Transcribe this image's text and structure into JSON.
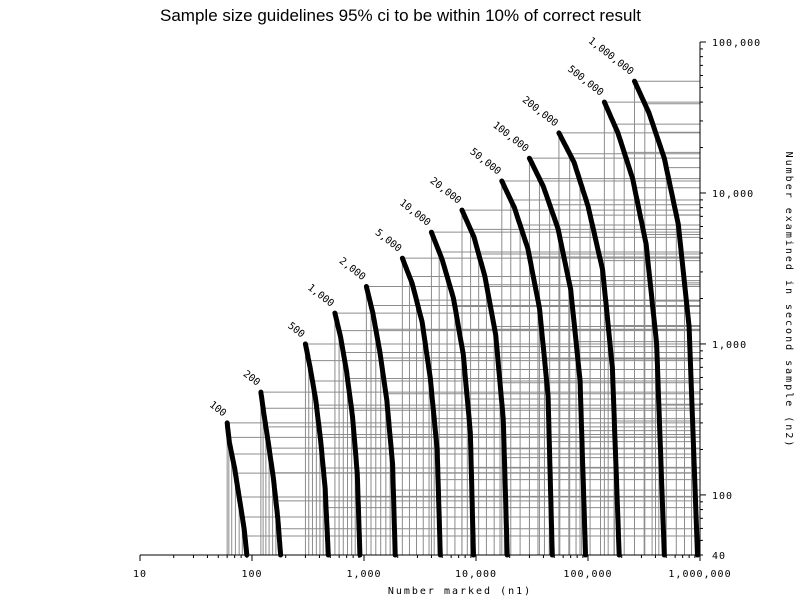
{
  "title": "Sample size guidelines 95% ci to be within 10% of correct result",
  "chart_data": {
    "type": "line",
    "title": "Sample size guidelines 95% ci to be within 10% of correct result",
    "xlabel": "Number marked (n1)",
    "ylabel": "Number examined in second sample (n2)",
    "x_scale": "log",
    "y_scale": "log",
    "xlim": [
      10,
      1000000
    ],
    "ylim": [
      40,
      100000
    ],
    "x_ticks": [
      {
        "value": 10,
        "label": "10"
      },
      {
        "value": 100,
        "label": "100"
      },
      {
        "value": 1000,
        "label": "1,000"
      },
      {
        "value": 10000,
        "label": "10,000"
      },
      {
        "value": 100000,
        "label": "100,000"
      },
      {
        "value": 1000000,
        "label": "1,000,000"
      }
    ],
    "y_ticks": [
      {
        "value": 40,
        "label": "40"
      },
      {
        "value": 100,
        "label": "100"
      },
      {
        "value": 1000,
        "label": "1,000"
      },
      {
        "value": 10000,
        "label": "10,000"
      },
      {
        "value": 100000,
        "label": "100,000"
      }
    ],
    "grid": true,
    "series": [
      {
        "name": "100",
        "points": [
          [
            60,
            300
          ],
          [
            63,
            220
          ],
          [
            70,
            150
          ],
          [
            78,
            90
          ],
          [
            85,
            60
          ],
          [
            90,
            40
          ]
        ]
      },
      {
        "name": "200",
        "points": [
          [
            120,
            480
          ],
          [
            128,
            340
          ],
          [
            140,
            220
          ],
          [
            155,
            130
          ],
          [
            170,
            70
          ],
          [
            180,
            40
          ]
        ]
      },
      {
        "name": "500",
        "points": [
          [
            300,
            1000
          ],
          [
            330,
            700
          ],
          [
            370,
            430
          ],
          [
            410,
            230
          ],
          [
            450,
            110
          ],
          [
            480,
            40
          ]
        ]
      },
      {
        "name": "1,000",
        "points": [
          [
            550,
            1600
          ],
          [
            620,
            1100
          ],
          [
            700,
            650
          ],
          [
            790,
            330
          ],
          [
            870,
            140
          ],
          [
            920,
            40
          ]
        ]
      },
      {
        "name": "2,000",
        "points": [
          [
            1050,
            2400
          ],
          [
            1200,
            1600
          ],
          [
            1380,
            900
          ],
          [
            1600,
            420
          ],
          [
            1800,
            160
          ],
          [
            1900,
            40
          ]
        ]
      },
      {
        "name": "5,000",
        "points": [
          [
            2200,
            3700
          ],
          [
            2700,
            2500
          ],
          [
            3300,
            1400
          ],
          [
            3900,
            600
          ],
          [
            4500,
            200
          ],
          [
            4800,
            40
          ]
        ]
      },
      {
        "name": "10,000",
        "points": [
          [
            4000,
            5500
          ],
          [
            5000,
            3600
          ],
          [
            6300,
            2000
          ],
          [
            7700,
            850
          ],
          [
            8900,
            260
          ],
          [
            9500,
            40
          ]
        ]
      },
      {
        "name": "20,000",
        "points": [
          [
            7500,
            7700
          ],
          [
            9600,
            5100
          ],
          [
            12000,
            2800
          ],
          [
            15000,
            1150
          ],
          [
            17500,
            320
          ],
          [
            19000,
            40
          ]
        ]
      },
      {
        "name": "50,000",
        "points": [
          [
            17000,
            12000
          ],
          [
            22000,
            8000
          ],
          [
            29000,
            4300
          ],
          [
            37000,
            1700
          ],
          [
            44000,
            450
          ],
          [
            48000,
            40
          ]
        ]
      },
      {
        "name": "100,000",
        "points": [
          [
            30000,
            17000
          ],
          [
            40000,
            11000
          ],
          [
            54000,
            5800
          ],
          [
            70000,
            2300
          ],
          [
            85000,
            570
          ],
          [
            95000,
            40
          ]
        ]
      },
      {
        "name": "200,000",
        "points": [
          [
            55000,
            25000
          ],
          [
            75000,
            16000
          ],
          [
            100000,
            8200
          ],
          [
            135000,
            3100
          ],
          [
            165000,
            700
          ],
          [
            190000,
            40
          ]
        ]
      },
      {
        "name": "500,000",
        "points": [
          [
            140000,
            40000
          ],
          [
            185000,
            25000
          ],
          [
            250000,
            12500
          ],
          [
            330000,
            4600
          ],
          [
            410000,
            1000
          ],
          [
            480000,
            40
          ]
        ]
      },
      {
        "name": "1,000,000",
        "points": [
          [
            260000,
            55000
          ],
          [
            350000,
            34000
          ],
          [
            480000,
            17000
          ],
          [
            640000,
            6200
          ],
          [
            800000,
            1300
          ],
          [
            950000,
            40
          ]
        ]
      }
    ]
  }
}
